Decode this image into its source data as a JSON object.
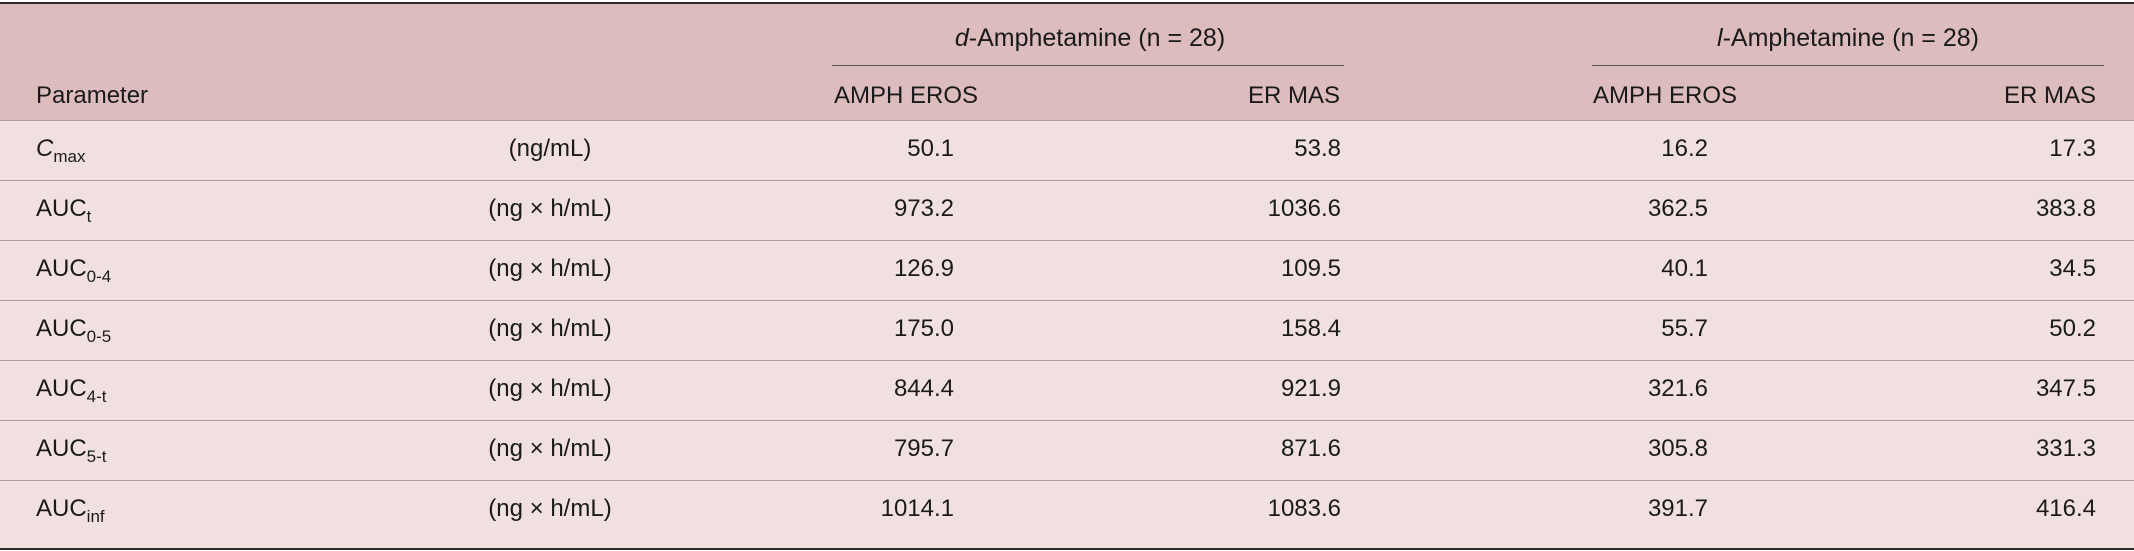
{
  "header": {
    "parameter_label": "Parameter",
    "groups": [
      {
        "drug": "d",
        "name_rest": "-Amphetamine (n = 28)",
        "cols": [
          "AMPH EROS",
          "ER MAS"
        ]
      },
      {
        "drug": "l",
        "name_rest": "-Amphetamine (n = 28)",
        "cols": [
          "AMPH EROS",
          "ER MAS"
        ]
      }
    ]
  },
  "rows": [
    {
      "base": "C",
      "sub": "max",
      "unit": "(ng/mL)",
      "values": [
        "50.1",
        "53.8",
        "16.2",
        "17.3"
      ]
    },
    {
      "base": "AUC",
      "sub": "t",
      "unit": "(ng × h/mL)",
      "values": [
        "973.2",
        "1036.6",
        "362.5",
        "383.8"
      ]
    },
    {
      "base": "AUC",
      "sub": "0-4",
      "unit": "(ng × h/mL)",
      "values": [
        "126.9",
        "109.5",
        "40.1",
        "34.5"
      ]
    },
    {
      "base": "AUC",
      "sub": "0-5",
      "unit": "(ng × h/mL)",
      "values": [
        "175.0",
        "158.4",
        "55.7",
        "50.2"
      ]
    },
    {
      "base": "AUC",
      "sub": "4-t",
      "unit": "(ng × h/mL)",
      "values": [
        "844.4",
        "921.9",
        "321.6",
        "347.5"
      ]
    },
    {
      "base": "AUC",
      "sub": "5-t",
      "unit": "(ng × h/mL)",
      "values": [
        "795.7",
        "871.6",
        "305.8",
        "331.3"
      ]
    },
    {
      "base": "AUC",
      "sub": "inf",
      "unit": "(ng × h/mL)",
      "values": [
        "1014.1",
        "1083.6",
        "391.7",
        "416.4"
      ]
    }
  ]
}
